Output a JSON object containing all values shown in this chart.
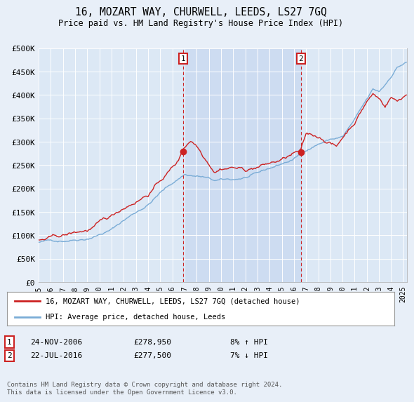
{
  "title": "16, MOZART WAY, CHURWELL, LEEDS, LS27 7GQ",
  "subtitle": "Price paid vs. HM Land Registry's House Price Index (HPI)",
  "background_color": "#e8eff8",
  "plot_bg_color": "#dce8f5",
  "ylim": [
    0,
    500000
  ],
  "yticks": [
    0,
    50000,
    100000,
    150000,
    200000,
    250000,
    300000,
    350000,
    400000,
    450000,
    500000
  ],
  "ytick_labels": [
    "£0",
    "£50K",
    "£100K",
    "£150K",
    "£200K",
    "£250K",
    "£300K",
    "£350K",
    "£400K",
    "£450K",
    "£500K"
  ],
  "marker1_x": 2006.9,
  "marker2_x": 2016.58,
  "marker1_label": "1",
  "marker2_label": "2",
  "marker1_date": "24-NOV-2006",
  "marker1_price": "£278,950",
  "marker1_hpi": "8% ↑ HPI",
  "marker2_date": "22-JUL-2016",
  "marker2_price": "£277,500",
  "marker2_hpi": "7% ↓ HPI",
  "legend_line1": "16, MOZART WAY, CHURWELL, LEEDS, LS27 7GQ (detached house)",
  "legend_line2": "HPI: Average price, detached house, Leeds",
  "footnote": "Contains HM Land Registry data © Crown copyright and database right 2024.\nThis data is licensed under the Open Government Licence v3.0.",
  "hpi_color": "#7aacd6",
  "price_color": "#cc2222",
  "shade_color": "#c8d8f0",
  "grid_color": "#d0d8e8",
  "xlim_left": 1995.0,
  "xlim_right": 2025.3,
  "x_tick_years": [
    1995,
    1996,
    1997,
    1998,
    1999,
    2000,
    2001,
    2002,
    2003,
    2004,
    2005,
    2006,
    2007,
    2008,
    2009,
    2010,
    2011,
    2012,
    2013,
    2014,
    2015,
    2016,
    2017,
    2018,
    2019,
    2020,
    2021,
    2022,
    2023,
    2024,
    2025
  ]
}
